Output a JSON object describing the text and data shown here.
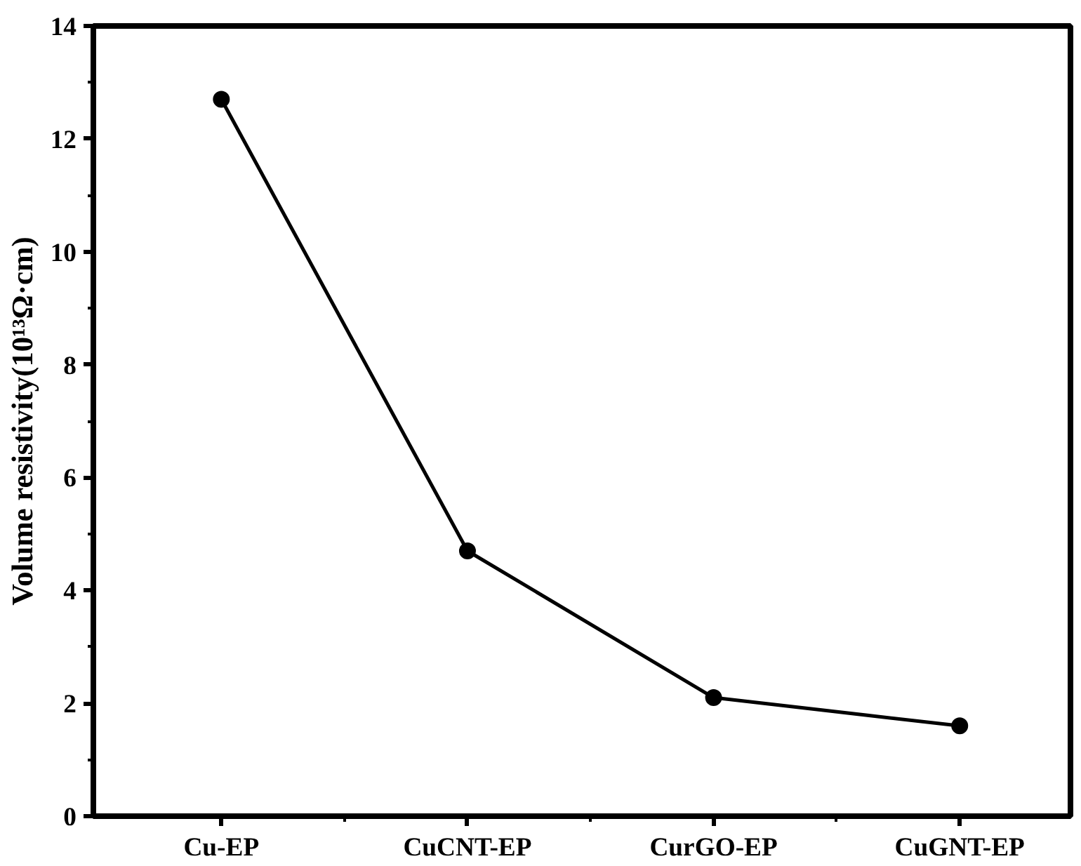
{
  "chart_data": {
    "type": "line",
    "ylabel": "Volume resistivity(10¹³Ω·cm)",
    "categories": [
      "Cu-EP",
      "CuCNT-EP",
      "CurGO-EP",
      "CuGNT-EP"
    ],
    "series": [
      {
        "color": "#000000",
        "values": [
          12.7,
          4.7,
          2.1,
          1.6
        ]
      }
    ],
    "ylim": [
      0,
      14
    ],
    "yticks": [
      0,
      2,
      4,
      6,
      8,
      10,
      12,
      14
    ],
    "marker": "circle",
    "line_style": "solid"
  }
}
